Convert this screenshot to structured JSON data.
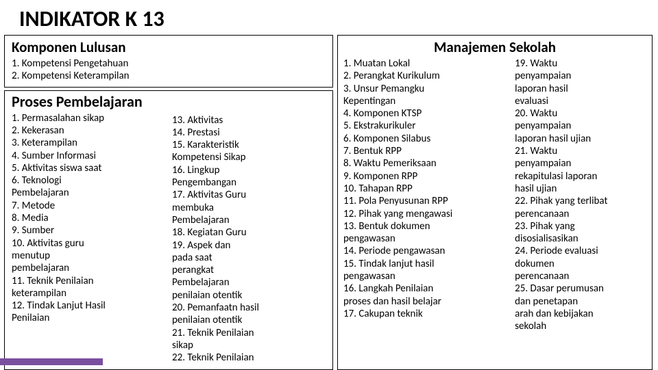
{
  "title": "INDIKATOR K 13",
  "komponen_lulusan": {
    "heading": "Komponen Lulusan",
    "items": [
      "1.   Kompetensi Pengetahuan",
      "2.   Kompetensi Keterampilan"
    ]
  },
  "proses": {
    "heading": "Proses Pembelajaran",
    "col_a": [
      "1.  Permasalahan sikap",
      "2.  Kekerasan",
      "3.  Keterampilan",
      "4.  Sumber Informasi",
      "5.  Aktivitas siswa saat",
      "6.  Teknologi",
      "     Pembelajaran",
      "7.  Metode",
      "8.  Media",
      "9.  Sumber",
      "10. Aktivitas guru",
      "      menutup",
      "      pembelajaran",
      "11. Teknik Penilaian",
      "      keterampilan",
      "12. Tindak Lanjut Hasil",
      "      Penilaian"
    ],
    "col_b": [
      "13. Aktivitas",
      "14. Prestasi",
      "15. Karakteristik",
      "      Kompetensi Sikap",
      "16. Lingkup",
      "Pengembangan",
      "17. Aktivitas Guru",
      "      membuka",
      "      Pembelajaran",
      "18. Kegiatan Guru",
      "19. Aspek dan",
      "      pada saat",
      "      perangkat",
      "      Pembelajaran",
      "      penilaian otentik",
      "20. Pemanfaatn hasil",
      "      penilaian otentik",
      "21. Teknik Penilaian",
      "sikap",
      "22. Teknik Penilaian"
    ]
  },
  "manajemen": {
    "heading": "Manajemen Sekolah",
    "col_a": [
      "1.  Muatan Lokal",
      "2.  Perangkat Kurikulum",
      "3.  Unsur Pemangku",
      "     Kepentingan",
      "4.  Komponen KTSP",
      "5.  Ekstrakurikuler",
      "6.  Komponen Silabus",
      "7.  Bentuk RPP",
      "8.  Waktu Pemeriksaan",
      "9.  Komponen RPP",
      "10. Tahapan RPP",
      "11. Pola Penyusunan RPP",
      "12. Pihak yang mengawasi",
      "13. Bentuk dokumen",
      "      pengawasan",
      "14. Periode pengawasan",
      "15. Tindak lanjut hasil",
      "      pengawasan",
      "16. Langkah Penilaian",
      "      proses dan hasil belajar",
      "17. Cakupan teknik"
    ],
    "col_b": [
      "19. Waktu",
      "      penyampaian",
      "      laporan hasil",
      "      evaluasi",
      "20. Waktu",
      "      penyampaian",
      "      laporan  hasil ujian",
      "21. Waktu",
      "      penyampaian",
      "      rekapitulasi laporan",
      "      hasil ujian",
      "22. Pihak yang terlibat",
      "      perencanaan",
      "23. Pihak yang",
      "      disosialisasikan",
      "24. Periode evaluasi",
      "      dokumen",
      "      perencanaan",
      "25. Dasar perumusan",
      "      dan penetapan",
      "      arah dan kebijakan",
      "      sekolah"
    ]
  },
  "colors": {
    "accent": "#7b4fa0",
    "border": "#000000",
    "bg": "#ffffff",
    "text": "#000000"
  }
}
